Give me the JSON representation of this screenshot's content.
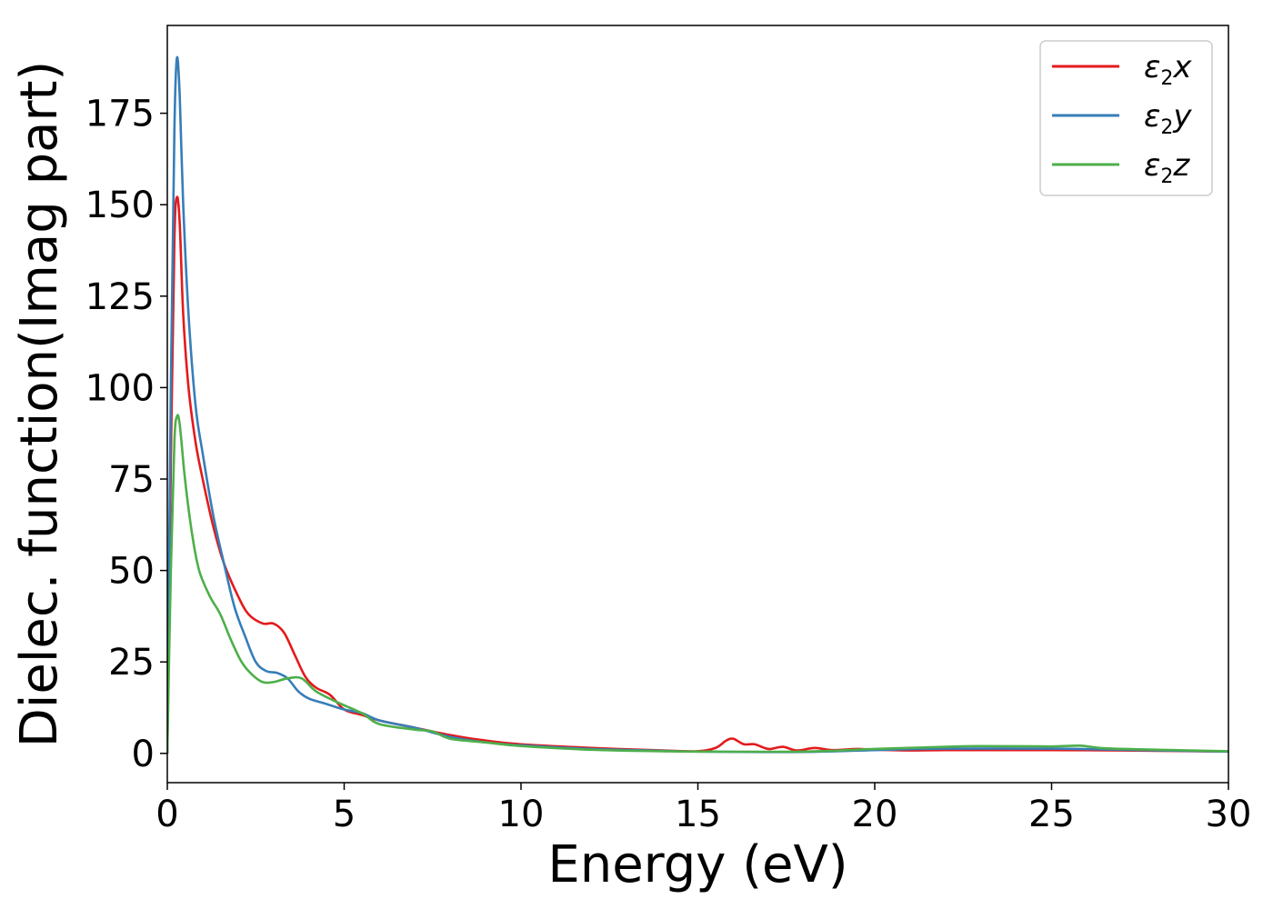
{
  "chart_data": {
    "type": "line",
    "title": "",
    "xlabel": "Energy (eV)",
    "ylabel": "Dielec. function(Imag part)",
    "xlim": [
      0,
      30
    ],
    "ylim": [
      -8,
      199
    ],
    "xticks": [
      0,
      5,
      10,
      15,
      20,
      25,
      30
    ],
    "yticks": [
      0,
      25,
      50,
      75,
      100,
      125,
      150,
      175
    ],
    "grid": false,
    "legend_position": "top-right",
    "series": [
      {
        "name": "ε2x",
        "legend_symbol": "ε",
        "legend_subscript": "2",
        "legend_suffix": "x",
        "color": "#e41a1c",
        "points": [
          [
            0,
            0
          ],
          [
            0.1,
            80
          ],
          [
            0.2,
            140
          ],
          [
            0.27,
            152
          ],
          [
            0.35,
            145
          ],
          [
            0.45,
            120
          ],
          [
            0.6,
            100
          ],
          [
            0.8,
            85
          ],
          [
            1.0,
            75
          ],
          [
            1.3,
            62
          ],
          [
            1.6,
            52
          ],
          [
            2.0,
            43
          ],
          [
            2.3,
            38
          ],
          [
            2.7,
            35.5
          ],
          [
            3.0,
            35.5
          ],
          [
            3.3,
            33
          ],
          [
            3.6,
            27
          ],
          [
            3.9,
            21
          ],
          [
            4.2,
            18
          ],
          [
            4.6,
            16
          ],
          [
            5.0,
            12
          ],
          [
            5.5,
            10.5
          ],
          [
            6.0,
            9
          ],
          [
            7.0,
            7
          ],
          [
            8.0,
            5
          ],
          [
            9.0,
            3.5
          ],
          [
            10.0,
            2.5
          ],
          [
            12.0,
            1.5
          ],
          [
            14.0,
            0.8
          ],
          [
            15.0,
            0.6
          ],
          [
            15.5,
            1.5
          ],
          [
            15.8,
            3.5
          ],
          [
            16.0,
            4
          ],
          [
            16.3,
            2.5
          ],
          [
            16.6,
            2.5
          ],
          [
            17.0,
            1.2
          ],
          [
            17.4,
            1.8
          ],
          [
            17.8,
            0.8
          ],
          [
            18.3,
            1.5
          ],
          [
            18.8,
            0.9
          ],
          [
            19.5,
            1.2
          ],
          [
            20.0,
            1.0
          ],
          [
            21.0,
            0.8
          ],
          [
            22.0,
            0.9
          ],
          [
            25.0,
            0.9
          ],
          [
            27.0,
            0.8
          ],
          [
            30.0,
            0.5
          ]
        ]
      },
      {
        "name": "ε2y",
        "legend_symbol": "ε",
        "legend_subscript": "2",
        "legend_suffix": "y",
        "color": "#377eb8",
        "points": [
          [
            0,
            0
          ],
          [
            0.1,
            100
          ],
          [
            0.2,
            170
          ],
          [
            0.27,
            190
          ],
          [
            0.35,
            180
          ],
          [
            0.45,
            150
          ],
          [
            0.6,
            120
          ],
          [
            0.8,
            95
          ],
          [
            1.0,
            82
          ],
          [
            1.3,
            65
          ],
          [
            1.6,
            52
          ],
          [
            1.9,
            40
          ],
          [
            2.2,
            32
          ],
          [
            2.5,
            25
          ],
          [
            2.8,
            22.5
          ],
          [
            3.1,
            22
          ],
          [
            3.4,
            20.5
          ],
          [
            3.7,
            17
          ],
          [
            4.0,
            15
          ],
          [
            4.5,
            13.5
          ],
          [
            5.0,
            12
          ],
          [
            5.5,
            11
          ],
          [
            6.0,
            9
          ],
          [
            7.0,
            7
          ],
          [
            8.0,
            4.5
          ],
          [
            9.0,
            3
          ],
          [
            10.0,
            2.2
          ],
          [
            12.0,
            1.2
          ],
          [
            14.0,
            0.7
          ],
          [
            15.0,
            0.5
          ],
          [
            18.0,
            0.4
          ],
          [
            20.0,
            0.9
          ],
          [
            22.0,
            1.3
          ],
          [
            25.0,
            1.3
          ],
          [
            27.0,
            1.0
          ],
          [
            30.0,
            0.5
          ]
        ]
      },
      {
        "name": "ε2z",
        "legend_symbol": "ε",
        "legend_subscript": "2",
        "legend_suffix": "z",
        "color": "#4daf4a",
        "points": [
          [
            0,
            0
          ],
          [
            0.1,
            50
          ],
          [
            0.2,
            85
          ],
          [
            0.27,
            92
          ],
          [
            0.35,
            90
          ],
          [
            0.5,
            75
          ],
          [
            0.7,
            60
          ],
          [
            0.9,
            50
          ],
          [
            1.2,
            43
          ],
          [
            1.5,
            38
          ],
          [
            1.8,
            31
          ],
          [
            2.1,
            25
          ],
          [
            2.4,
            21.5
          ],
          [
            2.7,
            19.5
          ],
          [
            3.0,
            19.5
          ],
          [
            3.4,
            20.5
          ],
          [
            3.8,
            20.5
          ],
          [
            4.2,
            17
          ],
          [
            4.8,
            14
          ],
          [
            5.5,
            11
          ],
          [
            6.0,
            8
          ],
          [
            7.0,
            6.5
          ],
          [
            7.5,
            6
          ],
          [
            8.0,
            4
          ],
          [
            9.0,
            3
          ],
          [
            10.0,
            2
          ],
          [
            12.0,
            1
          ],
          [
            14.0,
            0.6
          ],
          [
            15.0,
            0.5
          ],
          [
            18.0,
            0.5
          ],
          [
            20.0,
            1.2
          ],
          [
            22.0,
            1.8
          ],
          [
            23.0,
            2.0
          ],
          [
            25.0,
            1.9
          ],
          [
            25.8,
            2.1
          ],
          [
            26.5,
            1.4
          ],
          [
            28.0,
            1.0
          ],
          [
            30.0,
            0.6
          ]
        ]
      }
    ]
  }
}
